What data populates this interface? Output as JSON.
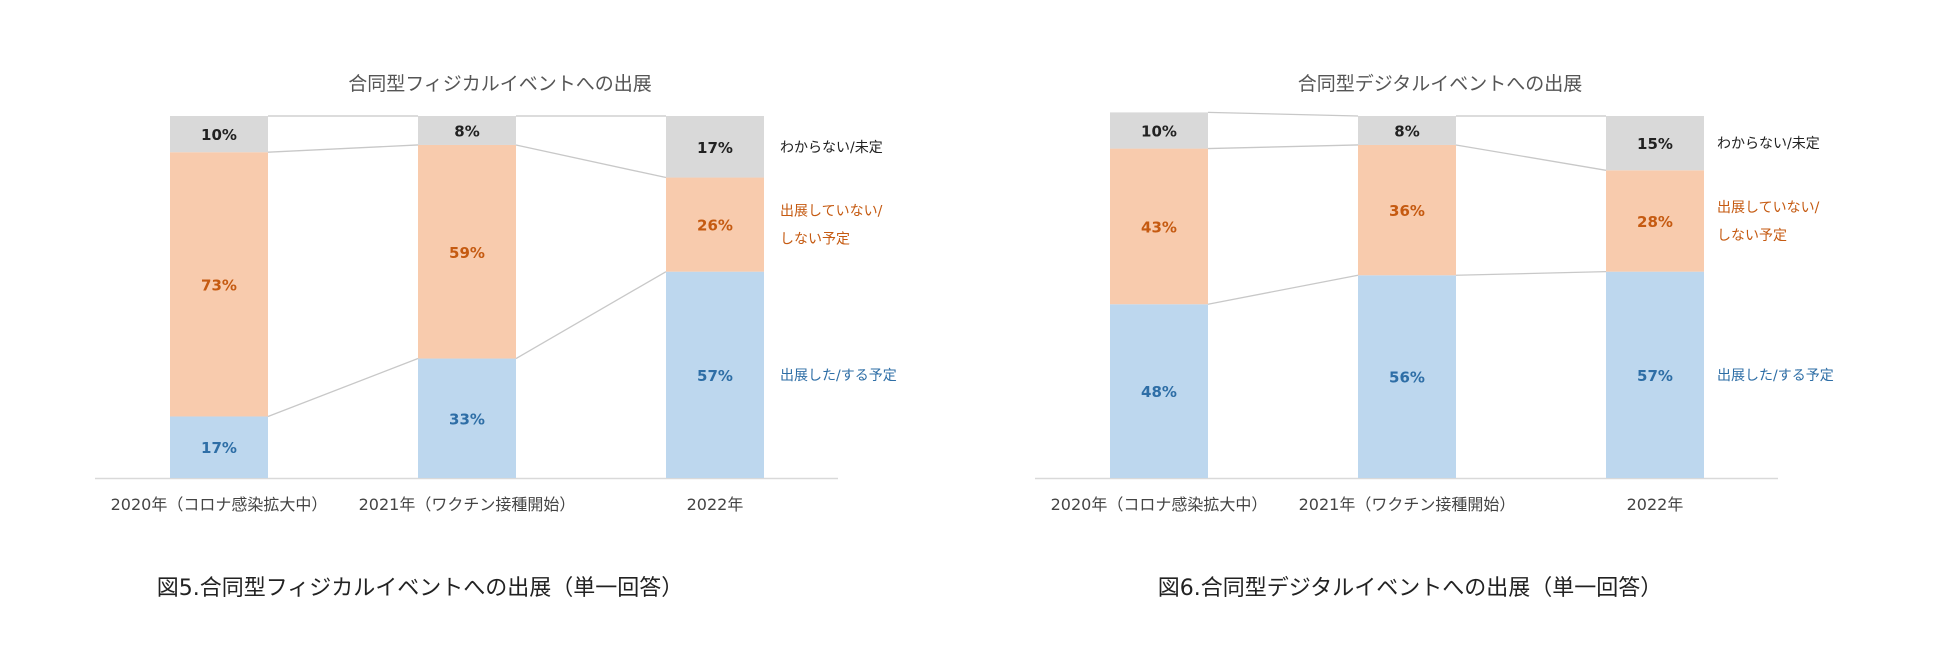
{
  "colors": {
    "yes": "#bdd7ee",
    "no": "#f8cbad",
    "unknown": "#d9d9d9",
    "yes_text": "#2e6ea6",
    "no_text": "#c55a11",
    "unknown_text": "#222222",
    "connector": "#c8c8c8",
    "axis": "#d9d9d9"
  },
  "captions": {
    "left": "図5.合同型フィジカルイベントへの出展（単一回答）",
    "right": "図6.合同型デジタルイベントへの出展（単一回答）"
  },
  "chart_data": [
    {
      "type": "bar",
      "stacked": true,
      "percent": true,
      "title": "合同型フィジカルイベントへの出展",
      "categories": [
        "2020年（コロナ感染拡大中）",
        "2021年（ワクチン接種開始）",
        "2022年"
      ],
      "ylim": [
        0,
        100
      ],
      "series": [
        {
          "name": "出展した/する予定",
          "key": "yes",
          "values": [
            17,
            33,
            57
          ],
          "labels": [
            "17%",
            "33%",
            "57%"
          ]
        },
        {
          "name": "出展していない/しない予定",
          "key": "no",
          "values": [
            73,
            59,
            26
          ],
          "labels": [
            "73%",
            "59%",
            "26%"
          ]
        },
        {
          "name": "わからない/未定",
          "key": "unknown",
          "values": [
            10,
            8,
            17
          ],
          "labels": [
            "10%",
            "8%",
            "17%"
          ]
        }
      ],
      "legend_lines": [
        {
          "key": "unknown",
          "lines": [
            "わからない/未定"
          ]
        },
        {
          "key": "no",
          "lines": [
            "出展していない/",
            "しない予定"
          ]
        },
        {
          "key": "yes",
          "lines": [
            "出展した/する予定"
          ]
        }
      ]
    },
    {
      "type": "bar",
      "stacked": true,
      "percent": true,
      "title": "合同型デジタルイベントへの出展",
      "categories": [
        "2020年（コロナ感染拡大中）",
        "2021年（ワクチン接種開始）",
        "2022年"
      ],
      "ylim": [
        0,
        100
      ],
      "series": [
        {
          "name": "出展した/する予定",
          "key": "yes",
          "values": [
            48,
            56,
            57
          ],
          "labels": [
            "48%",
            "56%",
            "57%"
          ]
        },
        {
          "name": "出展していない/しない予定",
          "key": "no",
          "values": [
            43,
            36,
            28
          ],
          "labels": [
            "43%",
            "36%",
            "28%"
          ]
        },
        {
          "name": "わからない/未定",
          "key": "unknown",
          "values": [
            10,
            8,
            15
          ],
          "labels": [
            "10%",
            "8%",
            "15%"
          ]
        }
      ],
      "legend_lines": [
        {
          "key": "unknown",
          "lines": [
            "わからない/未定"
          ]
        },
        {
          "key": "no",
          "lines": [
            "出展していない/",
            "しない予定"
          ]
        },
        {
          "key": "yes",
          "lines": [
            "出展した/する予定"
          ]
        }
      ]
    }
  ]
}
